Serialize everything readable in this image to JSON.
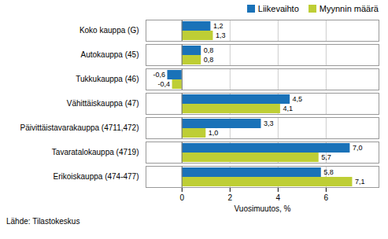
{
  "chart_data": {
    "type": "bar",
    "orientation": "horizontal",
    "categories": [
      "Koko kauppa (G)",
      "Autokauppa (45)",
      "Tukkukauppa (46)",
      "Vähittäiskauppa (47)",
      "Päivittäistavarakauppa (4711,472)",
      "Tavaratalokauppa (4719)",
      "Erikoiskauppa (474-477)"
    ],
    "series": [
      {
        "name": "Liikevaihto",
        "color": "#1A72B8",
        "values": [
          1.2,
          0.8,
          -0.6,
          4.5,
          3.3,
          7.0,
          5.8
        ],
        "value_labels": [
          "1,2",
          "0,8",
          "-0,6",
          "4,5",
          "3,3",
          "7,0",
          "5,8"
        ]
      },
      {
        "name": "Myynnin määrä",
        "color": "#BECE35",
        "values": [
          1.3,
          0.8,
          -0.4,
          4.1,
          1.0,
          5.7,
          7.1
        ],
        "value_labels": [
          "1,3",
          "0,8",
          "-0,4",
          "4,1",
          "1,0",
          "5,7",
          "7,1"
        ]
      }
    ],
    "xlabel": "Vuosimuutos, %",
    "xlim": [
      -1.5,
      8.2
    ],
    "xticks": [
      0,
      2,
      4,
      6
    ],
    "grid": true,
    "legend": "upper right",
    "data_labels": true,
    "source": "Lähde: Tilastokeskus"
  }
}
